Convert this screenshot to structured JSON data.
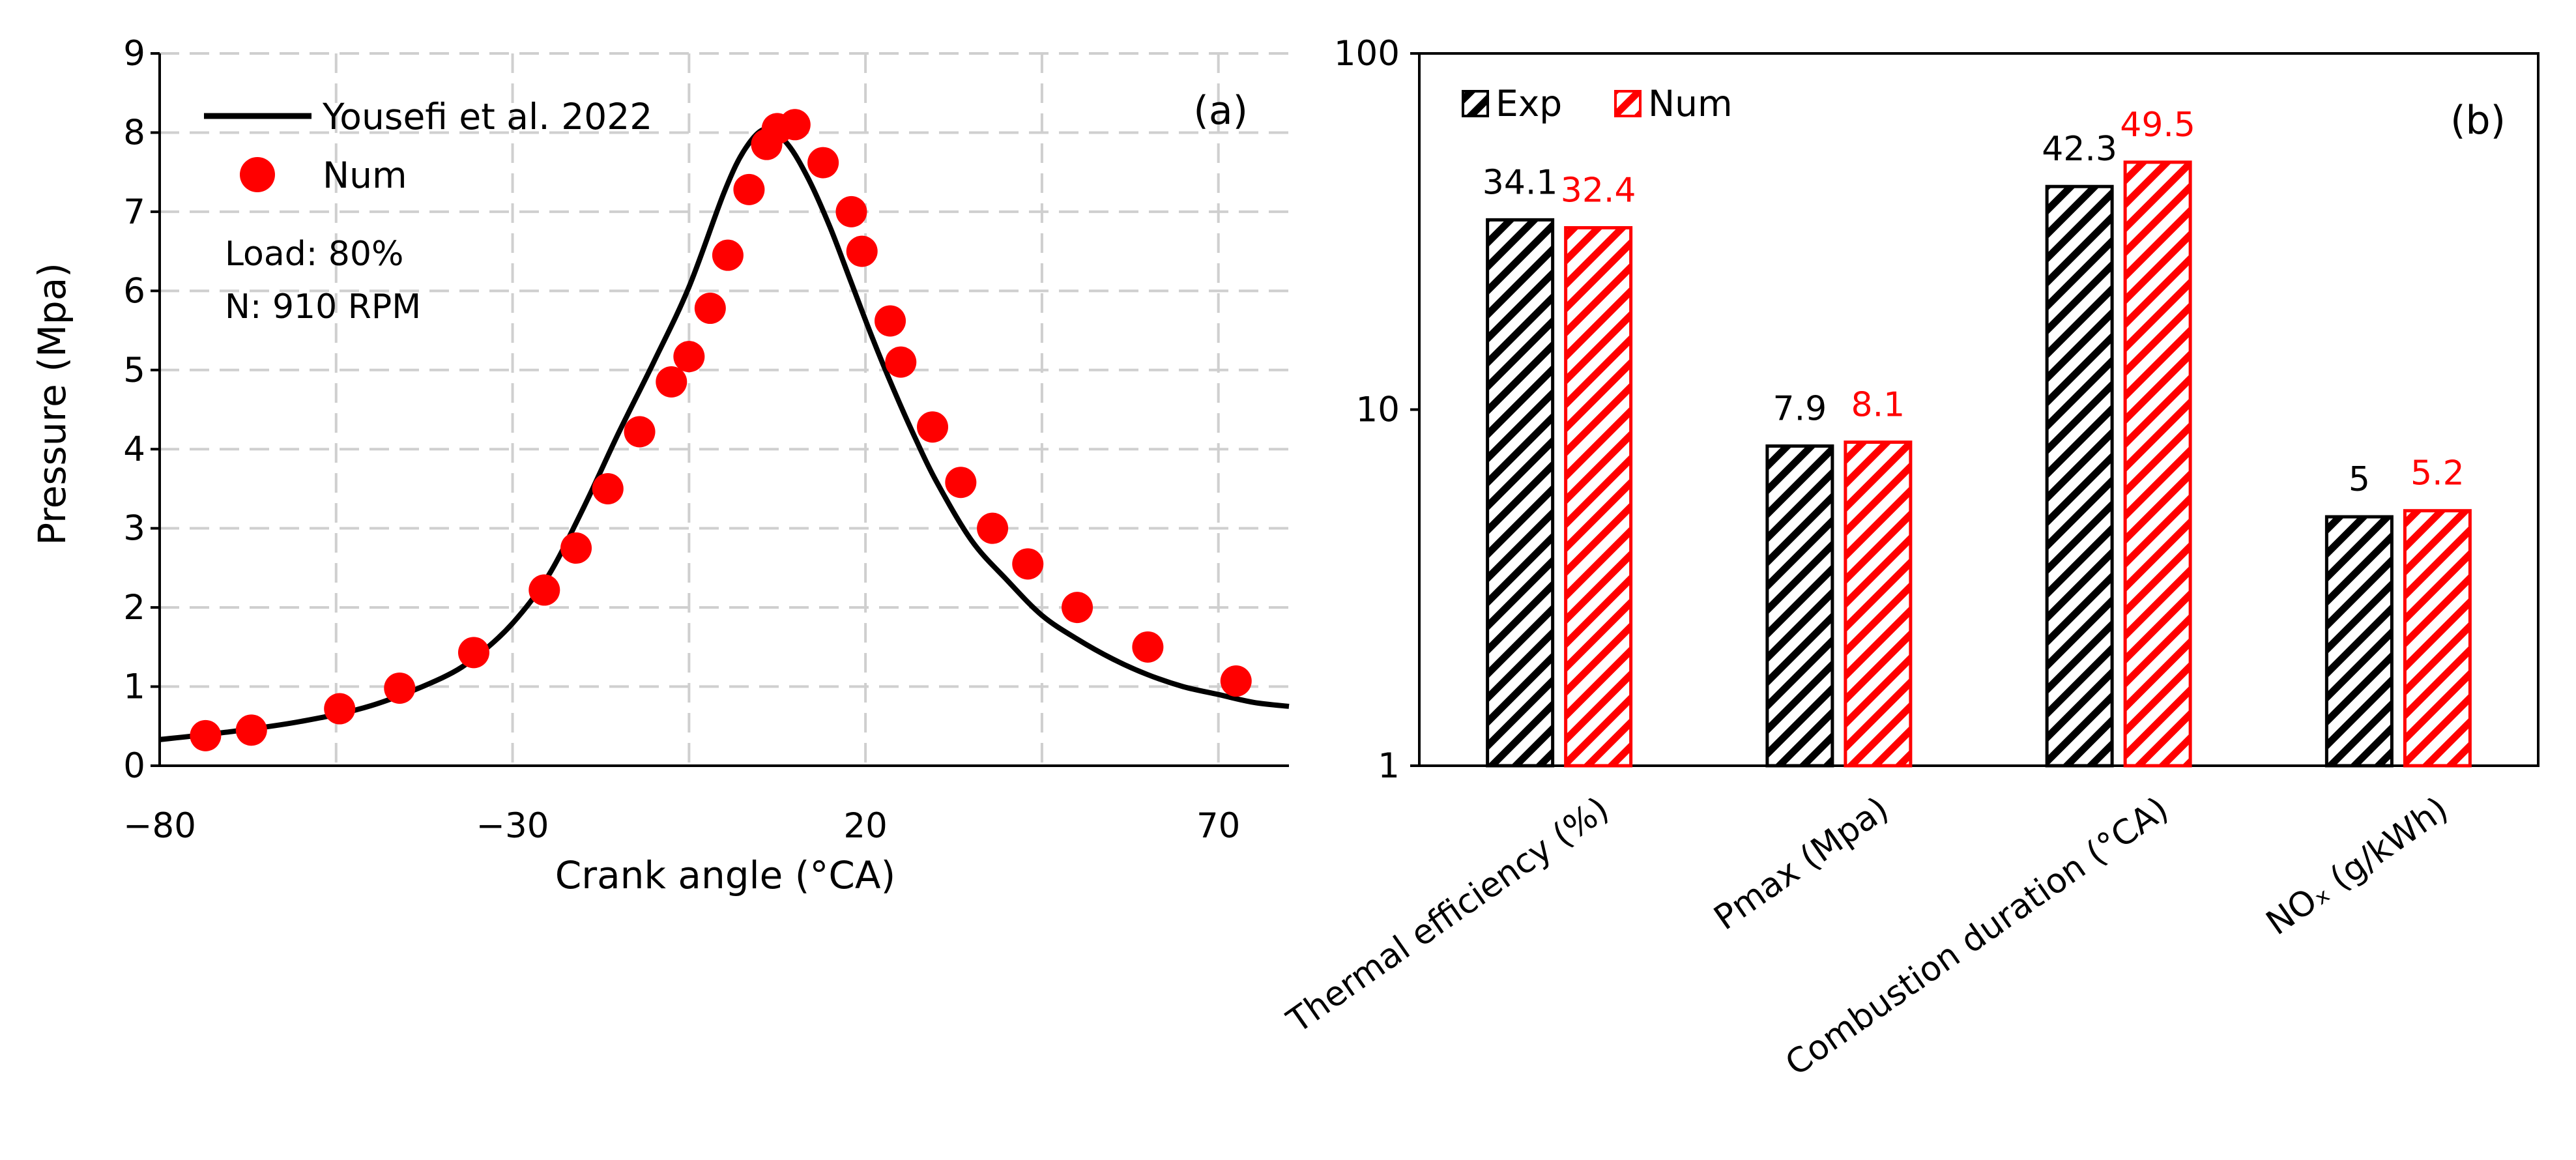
{
  "colors": {
    "exp": "#000000",
    "num": "#ff0000",
    "grid": "#cfcfcf"
  },
  "chart_data": [
    {
      "panel": "(a)",
      "type": "line",
      "xlabel": "Crank angle (°CA)",
      "ylabel": "Pressure (Mpa)",
      "xlim": [
        -80,
        80
      ],
      "ylim": [
        0,
        9
      ],
      "xticks": [
        -80,
        -30,
        20,
        70
      ],
      "yticks": [
        0,
        1,
        2,
        3,
        4,
        5,
        6,
        7,
        8,
        9
      ],
      "grid": true,
      "annotations": [
        "Load: 80%",
        "N: 910 RPM"
      ],
      "series": [
        {
          "name": "Yousefi et al. 2022",
          "style": "line",
          "x": [
            -80,
            -70,
            -60,
            -50,
            -40,
            -35,
            -30,
            -25,
            -20,
            -15,
            -10,
            -5,
            0,
            3,
            6,
            9,
            12,
            15,
            18,
            21,
            24,
            27,
            30,
            35,
            40,
            45,
            50,
            55,
            60,
            65,
            70,
            75,
            80
          ],
          "y": [
            0.33,
            0.43,
            0.56,
            0.76,
            1.11,
            1.39,
            1.8,
            2.39,
            3.25,
            4.2,
            5.1,
            6.05,
            7.25,
            7.8,
            8.05,
            7.85,
            7.4,
            6.8,
            6.1,
            5.4,
            4.75,
            4.15,
            3.6,
            2.85,
            2.35,
            1.9,
            1.6,
            1.35,
            1.15,
            1.0,
            0.9,
            0.8,
            0.75
          ]
        },
        {
          "name": "Num",
          "style": "scatter",
          "x": [
            -73.5,
            -67,
            -54.5,
            -46,
            -35.5,
            -25.5,
            -21,
            -16.5,
            -12,
            -7.5,
            -5,
            -2,
            0.5,
            3.5,
            6,
            7.5,
            10,
            14,
            18,
            19.5,
            23.5,
            25,
            29.5,
            33.5,
            38,
            43,
            50,
            60,
            72.5
          ],
          "y": [
            0.38,
            0.45,
            0.72,
            0.98,
            1.43,
            2.22,
            2.75,
            3.5,
            4.22,
            4.85,
            5.17,
            5.78,
            6.45,
            7.28,
            7.85,
            8.05,
            8.1,
            7.62,
            7.0,
            6.5,
            5.62,
            5.1,
            4.28,
            3.58,
            3.0,
            2.55,
            2.0,
            1.5,
            1.07
          ]
        }
      ]
    },
    {
      "panel": "(b)",
      "type": "bar",
      "yscale": "log",
      "ylim": [
        1,
        100
      ],
      "yticks": [
        1,
        10,
        100
      ],
      "categories": [
        "Thermal efficiency (%)",
        "Pmax (Mpa)",
        "Combustion duration (°CA)",
        "NOₓ (g/kWh)"
      ],
      "series": [
        {
          "name": "Exp",
          "values": [
            34.1,
            7.9,
            42.3,
            5
          ],
          "labels": [
            "34.1",
            "7.9",
            "42.3",
            "5"
          ]
        },
        {
          "name": "Num",
          "values": [
            32.4,
            8.1,
            49.5,
            5.2
          ],
          "labels": [
            "32.4",
            "8.1",
            "49.5",
            "5.2"
          ]
        }
      ]
    }
  ]
}
